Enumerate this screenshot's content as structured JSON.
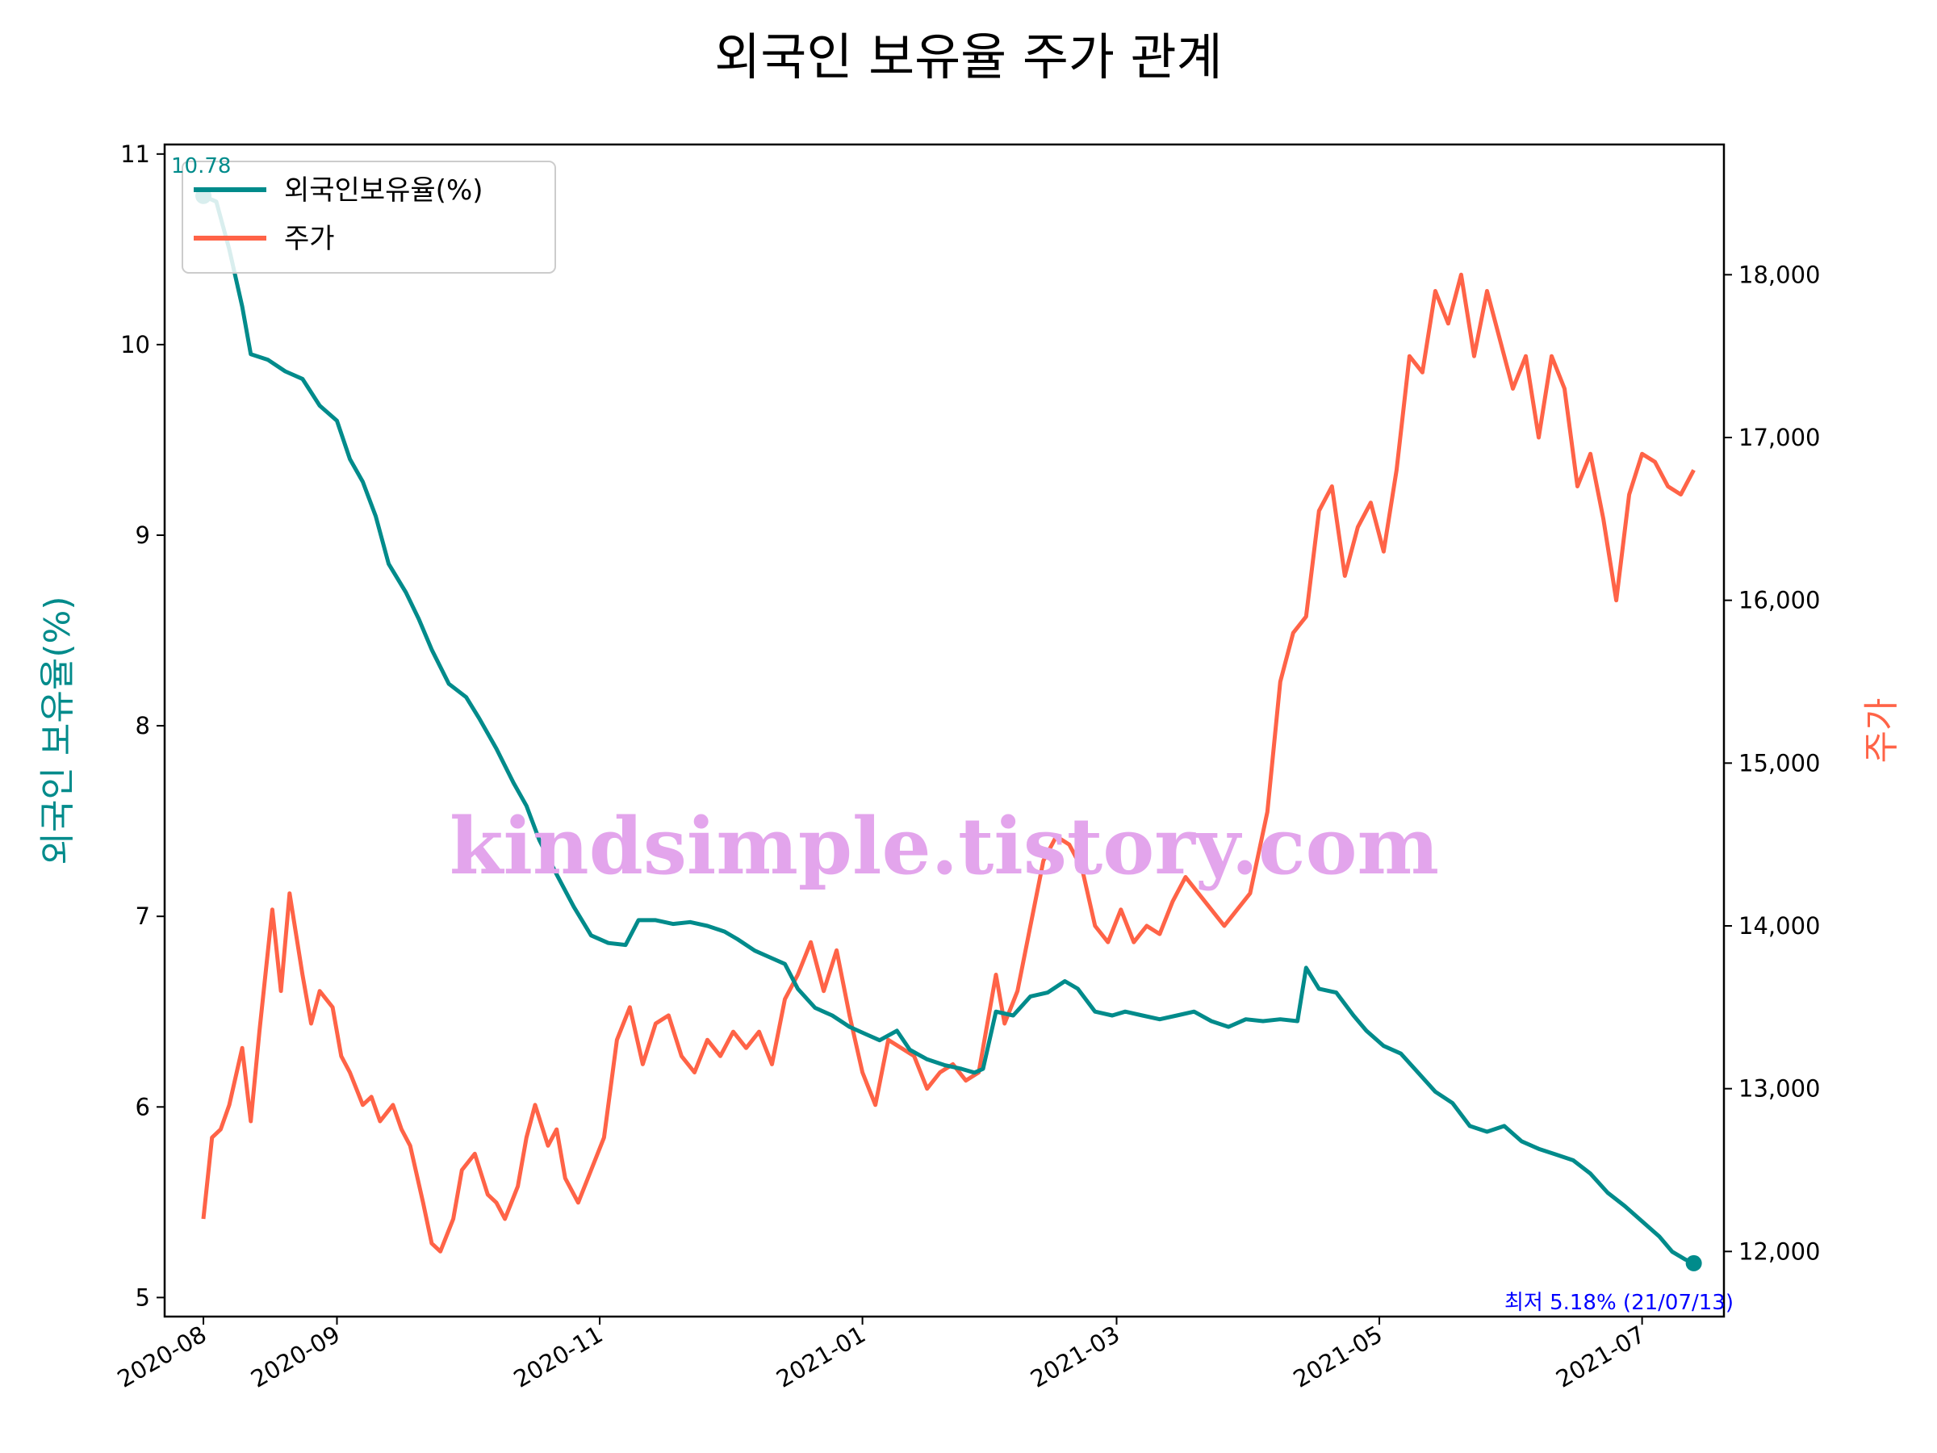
{
  "chart_data": {
    "type": "line",
    "title": "외국인 보유율 주가 관계",
    "ylabel_left": "외국인 보유율(%)",
    "ylabel_right": "주가",
    "left_axis": {
      "ylim": [
        4.9,
        11.05
      ],
      "ticks": [
        5,
        6,
        7,
        8,
        9,
        10,
        11
      ],
      "tick_labels": [
        "5",
        "6",
        "7",
        "8",
        "9",
        "10",
        "11"
      ]
    },
    "right_axis": {
      "ylim": [
        11600,
        18800
      ],
      "ticks": [
        12000,
        13000,
        14000,
        15000,
        16000,
        17000,
        18000
      ],
      "tick_labels": [
        "12,000",
        "13,000",
        "14,000",
        "15,000",
        "16,000",
        "17,000",
        "18,000"
      ]
    },
    "x_axis": {
      "range": [
        "2020-07-23",
        "2021-07-20"
      ],
      "ticks": [
        "2020-08-01",
        "2020-09-01",
        "2020-11-01",
        "2021-01-01",
        "2021-03-01",
        "2021-05-01",
        "2021-07-01"
      ],
      "tick_labels": [
        "2020-08",
        "2020-09",
        "2020-11",
        "2021-01",
        "2021-03",
        "2021-05",
        "2021-07"
      ]
    },
    "legend": {
      "position": "top-left",
      "entries": [
        "외국인보유율(%)",
        "주가"
      ]
    },
    "grid": false,
    "series": [
      {
        "name": "외국인보유율(%)",
        "color": "#008b8b",
        "axis": "left",
        "points": [
          [
            "2020-08-01",
            10.78
          ],
          [
            "2020-08-04",
            10.75
          ],
          [
            "2020-08-07",
            10.5
          ],
          [
            "2020-08-10",
            10.2
          ],
          [
            "2020-08-12",
            9.95
          ],
          [
            "2020-08-16",
            9.92
          ],
          [
            "2020-08-20",
            9.86
          ],
          [
            "2020-08-24",
            9.82
          ],
          [
            "2020-08-28",
            9.68
          ],
          [
            "2020-09-01",
            9.6
          ],
          [
            "2020-09-04",
            9.4
          ],
          [
            "2020-09-07",
            9.28
          ],
          [
            "2020-09-10",
            9.1
          ],
          [
            "2020-09-13",
            8.85
          ],
          [
            "2020-09-17",
            8.7
          ],
          [
            "2020-09-20",
            8.56
          ],
          [
            "2020-09-23",
            8.4
          ],
          [
            "2020-09-27",
            8.22
          ],
          [
            "2020-10-01",
            8.15
          ],
          [
            "2020-10-04",
            8.04
          ],
          [
            "2020-10-08",
            7.88
          ],
          [
            "2020-10-12",
            7.7
          ],
          [
            "2020-10-15",
            7.58
          ],
          [
            "2020-10-18",
            7.4
          ],
          [
            "2020-10-22",
            7.22
          ],
          [
            "2020-10-26",
            7.05
          ],
          [
            "2020-10-30",
            6.9
          ],
          [
            "2020-11-03",
            6.86
          ],
          [
            "2020-11-07",
            6.85
          ],
          [
            "2020-11-10",
            6.98
          ],
          [
            "2020-11-14",
            6.98
          ],
          [
            "2020-11-18",
            6.96
          ],
          [
            "2020-11-22",
            6.97
          ],
          [
            "2020-11-26",
            6.95
          ],
          [
            "2020-11-30",
            6.92
          ],
          [
            "2020-12-03",
            6.88
          ],
          [
            "2020-12-07",
            6.82
          ],
          [
            "2020-12-11",
            6.78
          ],
          [
            "2020-12-14",
            6.75
          ],
          [
            "2020-12-17",
            6.62
          ],
          [
            "2020-12-21",
            6.52
          ],
          [
            "2020-12-25",
            6.48
          ],
          [
            "2020-12-29",
            6.42
          ],
          [
            "2021-01-02",
            6.38
          ],
          [
            "2021-01-05",
            6.35
          ],
          [
            "2021-01-09",
            6.4
          ],
          [
            "2021-01-12",
            6.3
          ],
          [
            "2021-01-16",
            6.25
          ],
          [
            "2021-01-20",
            6.22
          ],
          [
            "2021-01-24",
            6.2
          ],
          [
            "2021-01-27",
            6.18
          ],
          [
            "2021-01-29",
            6.2
          ],
          [
            "2021-02-01",
            6.5
          ],
          [
            "2021-02-05",
            6.48
          ],
          [
            "2021-02-09",
            6.58
          ],
          [
            "2021-02-13",
            6.6
          ],
          [
            "2021-02-17",
            6.66
          ],
          [
            "2021-02-20",
            6.62
          ],
          [
            "2021-02-24",
            6.5
          ],
          [
            "2021-02-28",
            6.48
          ],
          [
            "2021-03-03",
            6.5
          ],
          [
            "2021-03-07",
            6.48
          ],
          [
            "2021-03-11",
            6.46
          ],
          [
            "2021-03-15",
            6.48
          ],
          [
            "2021-03-19",
            6.5
          ],
          [
            "2021-03-23",
            6.45
          ],
          [
            "2021-03-27",
            6.42
          ],
          [
            "2021-03-31",
            6.46
          ],
          [
            "2021-04-04",
            6.45
          ],
          [
            "2021-04-08",
            6.46
          ],
          [
            "2021-04-12",
            6.45
          ],
          [
            "2021-04-14",
            6.73
          ],
          [
            "2021-04-17",
            6.62
          ],
          [
            "2021-04-21",
            6.6
          ],
          [
            "2021-04-25",
            6.48
          ],
          [
            "2021-04-28",
            6.4
          ],
          [
            "2021-05-02",
            6.32
          ],
          [
            "2021-05-06",
            6.28
          ],
          [
            "2021-05-10",
            6.18
          ],
          [
            "2021-05-14",
            6.08
          ],
          [
            "2021-05-18",
            6.02
          ],
          [
            "2021-05-22",
            5.9
          ],
          [
            "2021-05-26",
            5.87
          ],
          [
            "2021-05-30",
            5.9
          ],
          [
            "2021-06-03",
            5.82
          ],
          [
            "2021-06-07",
            5.78
          ],
          [
            "2021-06-11",
            5.75
          ],
          [
            "2021-06-15",
            5.72
          ],
          [
            "2021-06-19",
            5.65
          ],
          [
            "2021-06-23",
            5.55
          ],
          [
            "2021-06-27",
            5.48
          ],
          [
            "2021-07-01",
            5.4
          ],
          [
            "2021-07-05",
            5.32
          ],
          [
            "2021-07-08",
            5.24
          ],
          [
            "2021-07-11",
            5.2
          ],
          [
            "2021-07-13",
            5.18
          ]
        ]
      },
      {
        "name": "주가",
        "color": "#ff6347",
        "axis": "right",
        "points": [
          [
            "2020-08-01",
            12200
          ],
          [
            "2020-08-03",
            12700
          ],
          [
            "2020-08-05",
            12750
          ],
          [
            "2020-08-07",
            12900
          ],
          [
            "2020-08-10",
            13250
          ],
          [
            "2020-08-12",
            12800
          ],
          [
            "2020-08-14",
            13350
          ],
          [
            "2020-08-17",
            14100
          ],
          [
            "2020-08-19",
            13600
          ],
          [
            "2020-08-21",
            14200
          ],
          [
            "2020-08-24",
            13700
          ],
          [
            "2020-08-26",
            13400
          ],
          [
            "2020-08-28",
            13600
          ],
          [
            "2020-08-31",
            13500
          ],
          [
            "2020-09-02",
            13200
          ],
          [
            "2020-09-04",
            13100
          ],
          [
            "2020-09-07",
            12900
          ],
          [
            "2020-09-09",
            12950
          ],
          [
            "2020-09-11",
            12800
          ],
          [
            "2020-09-14",
            12900
          ],
          [
            "2020-09-16",
            12750
          ],
          [
            "2020-09-18",
            12650
          ],
          [
            "2020-09-21",
            12300
          ],
          [
            "2020-09-23",
            12050
          ],
          [
            "2020-09-25",
            12000
          ],
          [
            "2020-09-28",
            12200
          ],
          [
            "2020-09-30",
            12500
          ],
          [
            "2020-10-03",
            12600
          ],
          [
            "2020-10-06",
            12350
          ],
          [
            "2020-10-08",
            12300
          ],
          [
            "2020-10-10",
            12200
          ],
          [
            "2020-10-13",
            12400
          ],
          [
            "2020-10-15",
            12700
          ],
          [
            "2020-10-17",
            12900
          ],
          [
            "2020-10-20",
            12650
          ],
          [
            "2020-10-22",
            12750
          ],
          [
            "2020-10-24",
            12450
          ],
          [
            "2020-10-27",
            12300
          ],
          [
            "2020-10-30",
            12500
          ],
          [
            "2020-11-02",
            12700
          ],
          [
            "2020-11-05",
            13300
          ],
          [
            "2020-11-08",
            13500
          ],
          [
            "2020-11-11",
            13150
          ],
          [
            "2020-11-14",
            13400
          ],
          [
            "2020-11-17",
            13450
          ],
          [
            "2020-11-20",
            13200
          ],
          [
            "2020-11-23",
            13100
          ],
          [
            "2020-11-26",
            13300
          ],
          [
            "2020-11-29",
            13200
          ],
          [
            "2020-12-02",
            13350
          ],
          [
            "2020-12-05",
            13250
          ],
          [
            "2020-12-08",
            13350
          ],
          [
            "2020-12-11",
            13150
          ],
          [
            "2020-12-14",
            13550
          ],
          [
            "2020-12-17",
            13700
          ],
          [
            "2020-12-20",
            13900
          ],
          [
            "2020-12-23",
            13600
          ],
          [
            "2020-12-26",
            13850
          ],
          [
            "2020-12-29",
            13450
          ],
          [
            "2021-01-01",
            13100
          ],
          [
            "2021-01-04",
            12900
          ],
          [
            "2021-01-07",
            13300
          ],
          [
            "2021-01-10",
            13250
          ],
          [
            "2021-01-13",
            13200
          ],
          [
            "2021-01-16",
            13000
          ],
          [
            "2021-01-19",
            13100
          ],
          [
            "2021-01-22",
            13150
          ],
          [
            "2021-01-25",
            13050
          ],
          [
            "2021-01-28",
            13100
          ],
          [
            "2021-02-01",
            13700
          ],
          [
            "2021-02-03",
            13400
          ],
          [
            "2021-02-06",
            13600
          ],
          [
            "2021-02-09",
            14000
          ],
          [
            "2021-02-12",
            14400
          ],
          [
            "2021-02-15",
            14550
          ],
          [
            "2021-02-18",
            14500
          ],
          [
            "2021-02-21",
            14350
          ],
          [
            "2021-02-24",
            14000
          ],
          [
            "2021-02-27",
            13900
          ],
          [
            "2021-03-02",
            14100
          ],
          [
            "2021-03-05",
            13900
          ],
          [
            "2021-03-08",
            14000
          ],
          [
            "2021-03-11",
            13950
          ],
          [
            "2021-03-14",
            14150
          ],
          [
            "2021-03-17",
            14300
          ],
          [
            "2021-03-20",
            14200
          ],
          [
            "2021-03-23",
            14100
          ],
          [
            "2021-03-26",
            14000
          ],
          [
            "2021-03-29",
            14100
          ],
          [
            "2021-04-01",
            14200
          ],
          [
            "2021-04-05",
            14700
          ],
          [
            "2021-04-08",
            15500
          ],
          [
            "2021-04-11",
            15800
          ],
          [
            "2021-04-14",
            15900
          ],
          [
            "2021-04-17",
            16550
          ],
          [
            "2021-04-20",
            16700
          ],
          [
            "2021-04-23",
            16150
          ],
          [
            "2021-04-26",
            16450
          ],
          [
            "2021-04-29",
            16600
          ],
          [
            "2021-05-02",
            16300
          ],
          [
            "2021-05-05",
            16800
          ],
          [
            "2021-05-08",
            17500
          ],
          [
            "2021-05-11",
            17400
          ],
          [
            "2021-05-14",
            17900
          ],
          [
            "2021-05-17",
            17700
          ],
          [
            "2021-05-20",
            18000
          ],
          [
            "2021-05-23",
            17500
          ],
          [
            "2021-05-26",
            17900
          ],
          [
            "2021-05-29",
            17600
          ],
          [
            "2021-06-01",
            17300
          ],
          [
            "2021-06-04",
            17500
          ],
          [
            "2021-06-07",
            17000
          ],
          [
            "2021-06-10",
            17500
          ],
          [
            "2021-06-13",
            17300
          ],
          [
            "2021-06-16",
            16700
          ],
          [
            "2021-06-19",
            16900
          ],
          [
            "2021-06-22",
            16500
          ],
          [
            "2021-06-25",
            16000
          ],
          [
            "2021-06-28",
            16650
          ],
          [
            "2021-07-01",
            16900
          ],
          [
            "2021-07-04",
            16850
          ],
          [
            "2021-07-07",
            16700
          ],
          [
            "2021-07-10",
            16650
          ],
          [
            "2021-07-13",
            16800
          ]
        ]
      }
    ],
    "annotations": [
      {
        "text": "10.78",
        "date": "2020-08-01",
        "value": 10.78,
        "color": "#008b8b"
      },
      {
        "text": "최저  5.18% (21/07/13)",
        "date": "2021-07-13",
        "value": 5.18,
        "color": "#0000ff"
      }
    ],
    "markers": [
      {
        "date": "2020-08-01",
        "value": 10.78,
        "color": "#008b8b"
      },
      {
        "date": "2021-07-13",
        "value": 5.18,
        "color": "#008b8b"
      }
    ],
    "watermark": "kindsimple.tistory.com",
    "watermark_color": "#e3a5ec"
  }
}
